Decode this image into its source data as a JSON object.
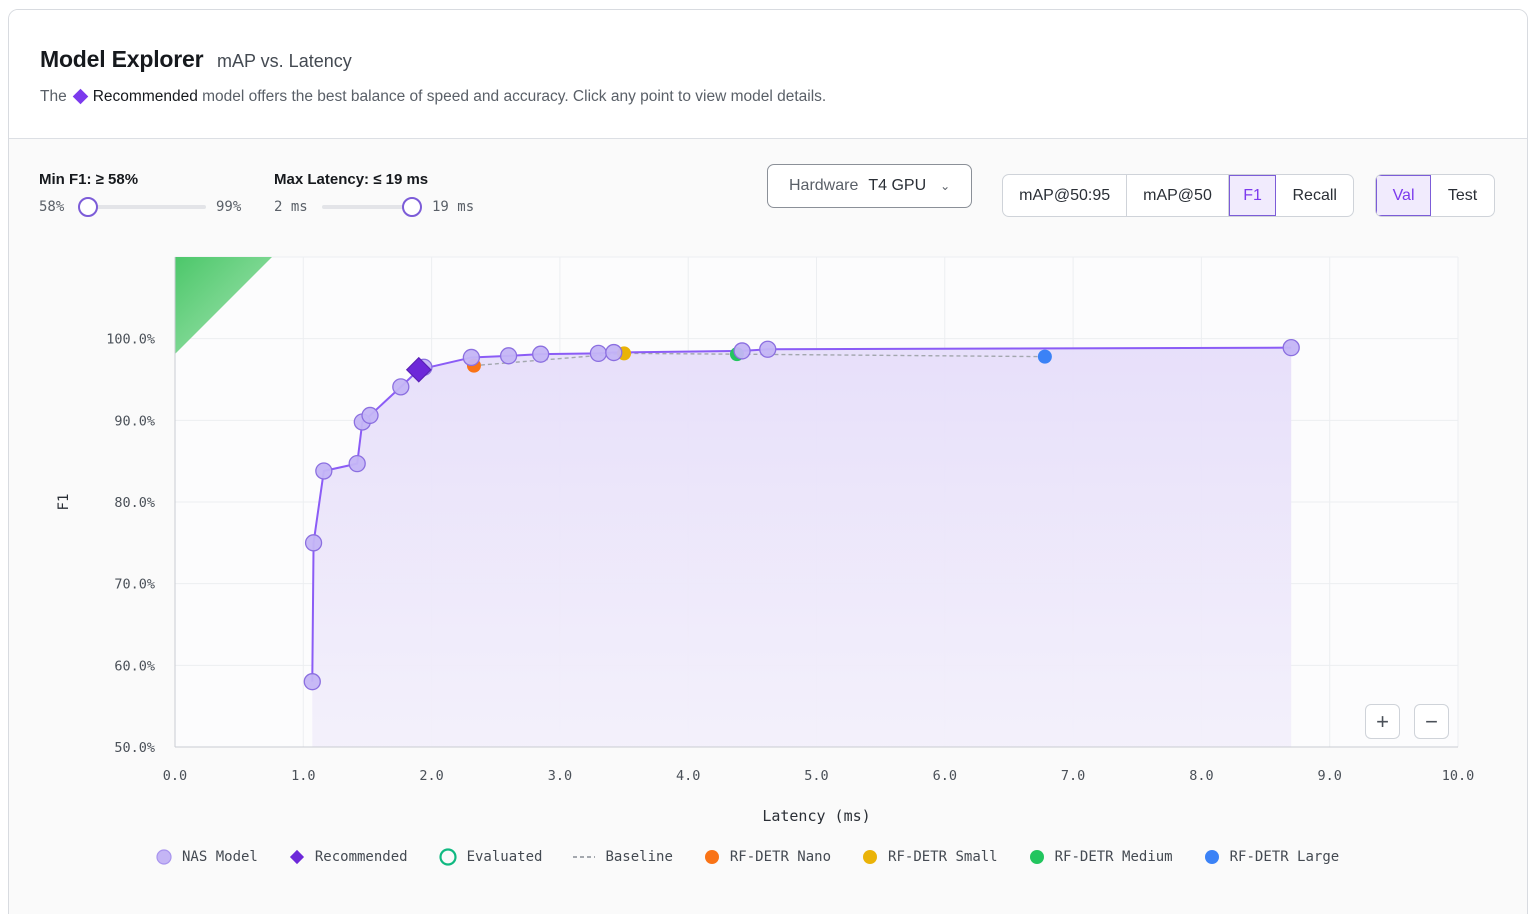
{
  "header": {
    "title": "Model Explorer",
    "subtitle": "mAP vs. Latency",
    "desc_prefix": "The",
    "desc_strong": "Recommended",
    "desc_suffix": "model offers the best balance of speed and accuracy. Click any point to view model details."
  },
  "filters": {
    "min_f1_label": "Min F1: ≥ 58%",
    "min_f1_low": "58%",
    "min_f1_high": "99%",
    "max_latency_label": "Max Latency: ≤ 19 ms",
    "max_latency_low": "2 ms",
    "max_latency_high": "19 ms",
    "min_f1_level": 0.0,
    "max_latency_level": 1.0
  },
  "hardware": {
    "label": "Hardware",
    "value": "T4 GPU"
  },
  "metric_tabs": [
    {
      "label": "mAP@50:95",
      "active": false
    },
    {
      "label": "mAP@50",
      "active": false
    },
    {
      "label": "F1",
      "active": true
    },
    {
      "label": "Recall",
      "active": false
    }
  ],
  "split_tabs": [
    {
      "label": "Val",
      "active": true
    },
    {
      "label": "Test",
      "active": false
    }
  ],
  "zoom": {
    "in": "+",
    "out": "−"
  },
  "colors": {
    "nas": "#c4b5f5",
    "nas_stroke": "#8b6fe0",
    "frontier": "#8b5cf6",
    "recommended": "#6d28d9",
    "nano": "#f97316",
    "small": "#eab308",
    "medium": "#22c55e",
    "large": "#3b82f6",
    "evaluated": "#10b981",
    "corner": "#34c759"
  },
  "chart_data": {
    "type": "scatter",
    "xlabel": "Latency (ms)",
    "ylabel": "F1",
    "xlim": [
      0,
      10
    ],
    "ylim": [
      50,
      110
    ],
    "xticks": [
      "0.0",
      "1.0",
      "2.0",
      "3.0",
      "4.0",
      "5.0",
      "6.0",
      "7.0",
      "8.0",
      "9.0",
      "10.0"
    ],
    "yticks": [
      "50.0%",
      "60.0%",
      "70.0%",
      "80.0%",
      "90.0%",
      "100.0%"
    ],
    "grid": true,
    "series": [
      {
        "name": "NAS Model",
        "points": [
          [
            1.07,
            58.0
          ],
          [
            1.08,
            75.0
          ],
          [
            1.16,
            83.8
          ],
          [
            1.42,
            84.7
          ],
          [
            1.46,
            89.8
          ],
          [
            1.52,
            90.6
          ],
          [
            1.76,
            94.1
          ],
          [
            1.94,
            96.5
          ],
          [
            2.31,
            97.7
          ],
          [
            2.6,
            97.9
          ],
          [
            2.85,
            98.1
          ],
          [
            3.3,
            98.2
          ],
          [
            3.42,
            98.3
          ],
          [
            4.42,
            98.5
          ],
          [
            4.62,
            98.7
          ],
          [
            8.7,
            98.9
          ]
        ]
      },
      {
        "name": "Recommended",
        "points": [
          [
            1.9,
            96.2
          ]
        ]
      },
      {
        "name": "RF-DETR Nano",
        "points": [
          [
            2.33,
            96.7
          ]
        ]
      },
      {
        "name": "RF-DETR Small",
        "points": [
          [
            3.5,
            98.2
          ]
        ]
      },
      {
        "name": "RF-DETR Medium",
        "points": [
          [
            4.38,
            98.1
          ]
        ]
      },
      {
        "name": "RF-DETR Large",
        "points": [
          [
            6.78,
            97.8
          ]
        ]
      }
    ],
    "frontier": [
      [
        1.07,
        58.0
      ],
      [
        1.08,
        75.0
      ],
      [
        1.16,
        83.8
      ],
      [
        1.42,
        84.7
      ],
      [
        1.46,
        89.8
      ],
      [
        1.52,
        90.6
      ],
      [
        1.76,
        94.1
      ],
      [
        1.9,
        96.2
      ],
      [
        2.31,
        97.7
      ],
      [
        2.6,
        97.9
      ],
      [
        2.85,
        98.1
      ],
      [
        3.3,
        98.2
      ],
      [
        3.42,
        98.3
      ],
      [
        4.42,
        98.5
      ],
      [
        4.62,
        98.7
      ],
      [
        8.7,
        98.9
      ]
    ],
    "baseline": [
      [
        2.33,
        96.7
      ],
      [
        3.5,
        98.2
      ],
      [
        4.38,
        98.1
      ],
      [
        6.78,
        97.8
      ]
    ],
    "legend": [
      "NAS Model",
      "Recommended",
      "Evaluated",
      "Baseline",
      "RF-DETR Nano",
      "RF-DETR Small",
      "RF-DETR Medium",
      "RF-DETR Large"
    ],
    "legend_position": "bottom"
  }
}
